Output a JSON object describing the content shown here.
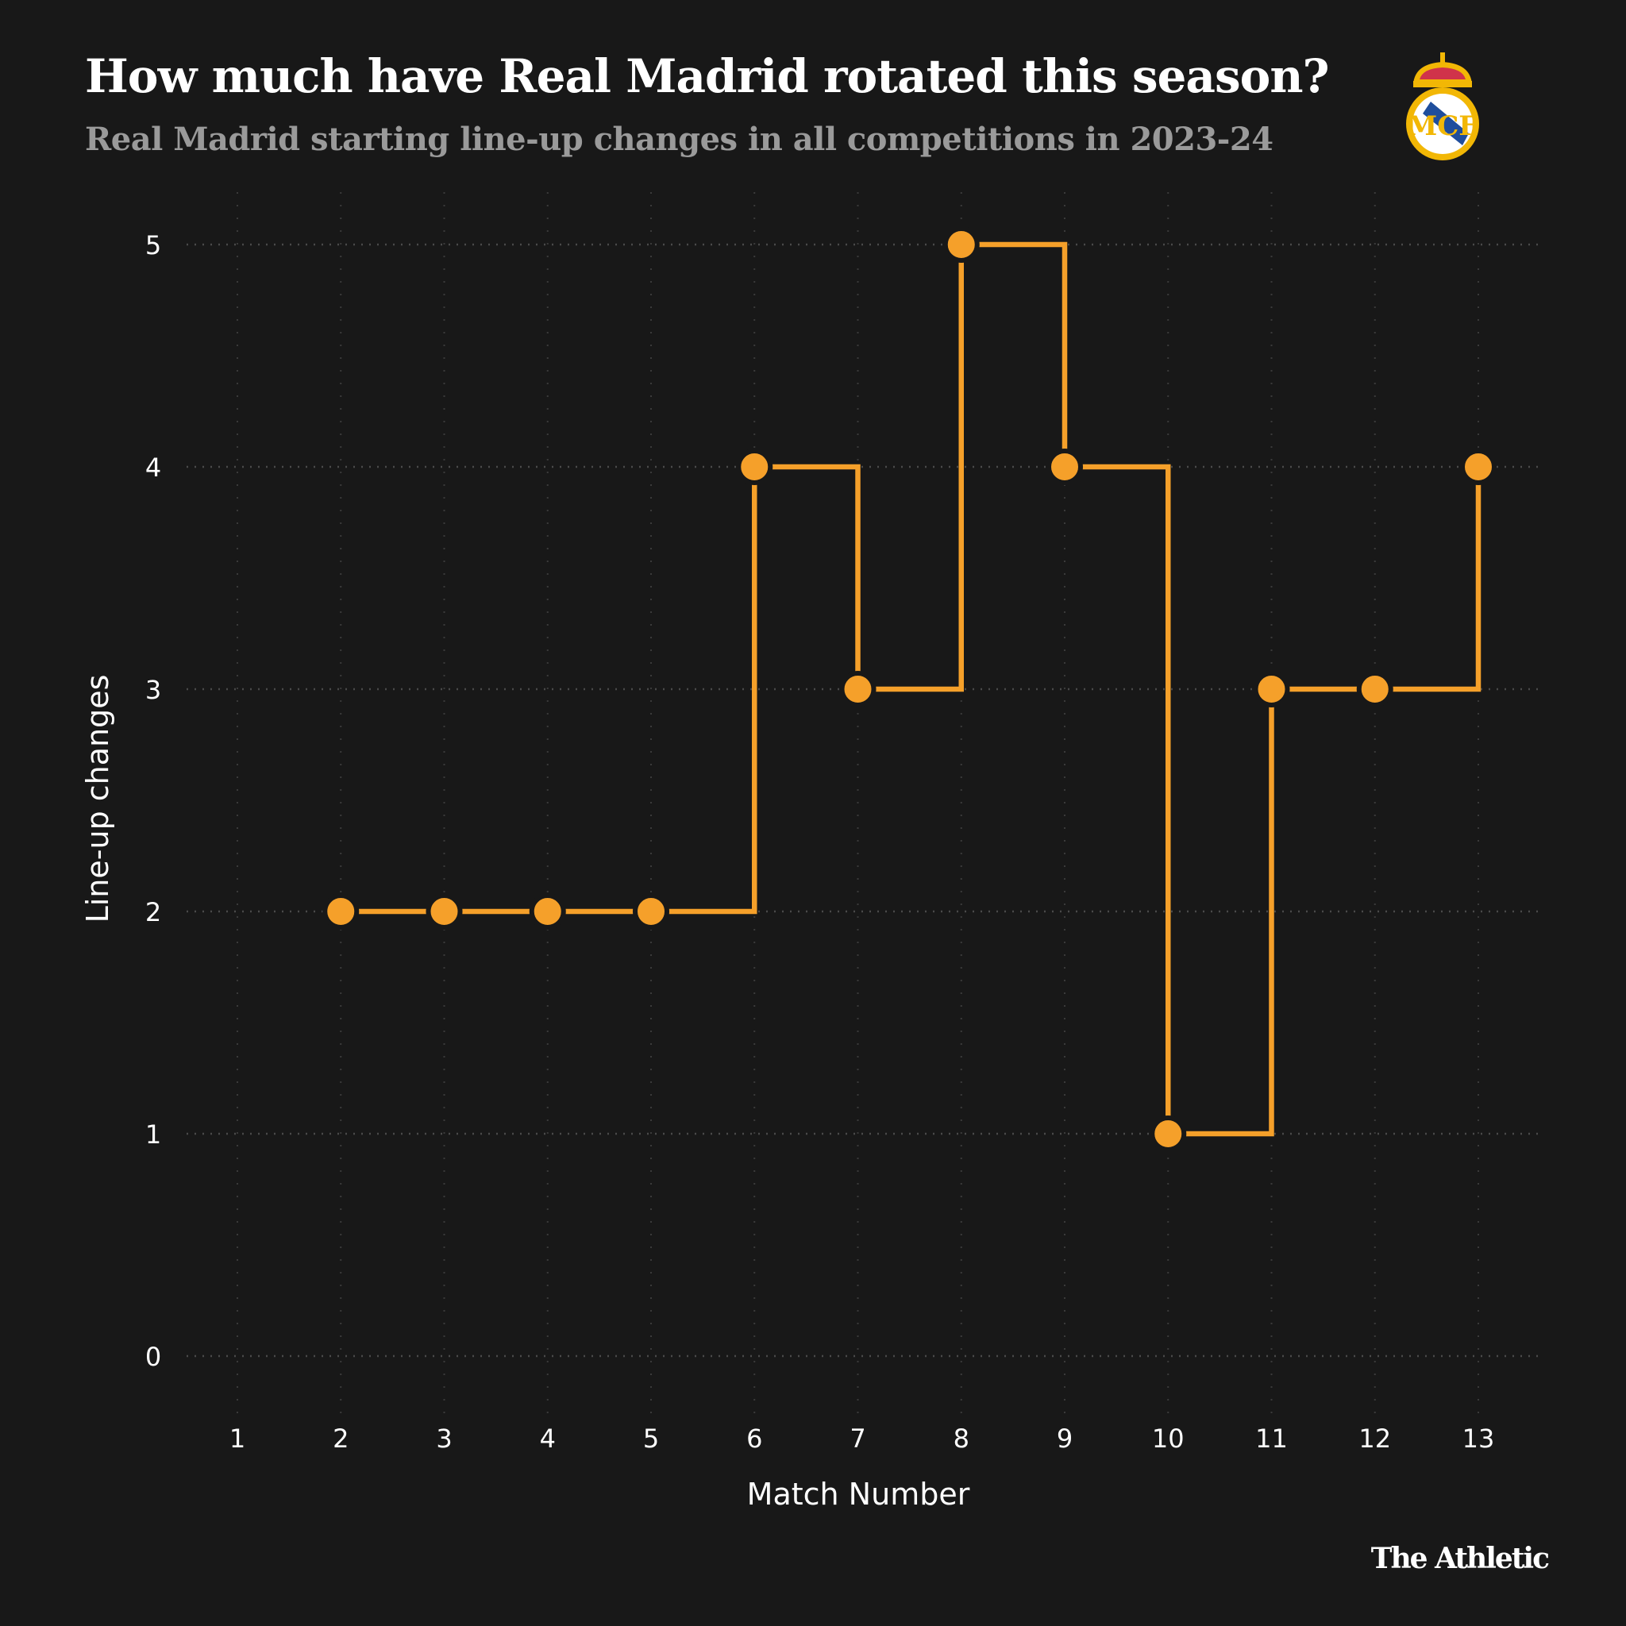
{
  "header": {
    "title": "How much have Real Madrid rotated this season?",
    "subtitle": "Real Madrid starting line-up changes in all competitions in 2023-24"
  },
  "logo": {
    "name": "real-madrid-crest",
    "text": "MCF",
    "colors": {
      "gold": "#F2B705",
      "blue": "#1F4E9C",
      "red": "#D0334A",
      "white": "#FFFFFF"
    }
  },
  "footer": {
    "brand": "The Athletic"
  },
  "chart_data": {
    "type": "line",
    "step": "horizontal-then-vertical",
    "title": "How much have Real Madrid rotated this season?",
    "subtitle": "Real Madrid starting line-up changes in all competitions in 2023-24",
    "xlabel": "Match Number",
    "ylabel": "Line-up changes",
    "x": [
      2,
      3,
      4,
      5,
      6,
      7,
      8,
      9,
      10,
      11,
      12,
      13
    ],
    "y": [
      2,
      2,
      2,
      2,
      4,
      3,
      5,
      4,
      1,
      3,
      3,
      4
    ],
    "xticks": [
      1,
      2,
      3,
      4,
      5,
      6,
      7,
      8,
      9,
      10,
      11,
      12,
      13
    ],
    "yticks": [
      0,
      1,
      2,
      3,
      4,
      5
    ],
    "xlim": [
      0.5,
      13.6
    ],
    "ylim": [
      -0.3,
      5.3
    ],
    "grid": true,
    "color": "#F5A02A",
    "background": "#181818"
  }
}
